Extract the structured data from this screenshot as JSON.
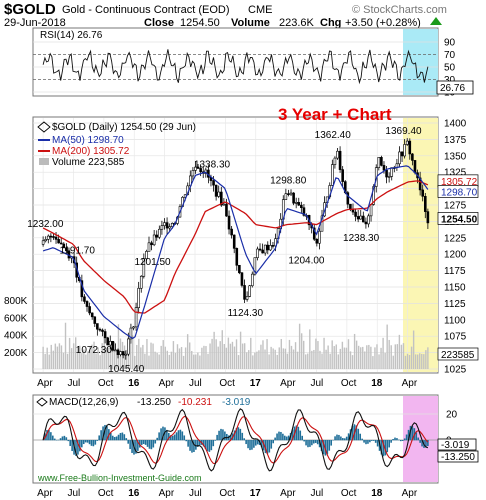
{
  "header": {
    "symbol": "$GOLD",
    "name": "Gold - Continuous Contract (EOD)",
    "exchange": "CME",
    "source": "© StockCharts.com",
    "date": "29-Jun-2018",
    "close_label": "Close",
    "close_value": "1254.50",
    "volume_label": "Volume",
    "volume_value": "223.6K",
    "chg_label": "Chg",
    "chg_value": "+3.50 (+0.28%)",
    "chg_icon": "up-triangle-icon"
  },
  "rsi": {
    "legend": "RSI(14) 26.76",
    "ticks": [
      "90",
      "70",
      "50",
      "30",
      "10"
    ],
    "value_label": "26.76"
  },
  "price": {
    "legend_main": "$GOLD (Daily) 1254.50 (29 Jun)",
    "legend_ma50": "MA(50) 1298.70",
    "legend_ma200": "MA(200) 1305.72",
    "legend_volume": "Volume 223,585",
    "headline": "3 Year + Chart",
    "ticks": [
      "1400",
      "1375",
      "1350",
      "1325",
      "1300",
      "1275",
      "1250",
      "1225",
      "1200",
      "1175",
      "1150",
      "1125",
      "1100",
      "1075",
      "1050",
      "1025"
    ],
    "ma200_label": "1305.72",
    "ma50_label": "1298.70",
    "last_label": "1254.50",
    "volume_value_label": "223585",
    "volume_ticks": [
      "800K",
      "600K",
      "400K",
      "200K"
    ],
    "annotations": [
      "1232.00",
      "1191.70",
      "1072.30",
      "1045.40",
      "1201.50",
      "1338.30",
      "1124.30",
      "1298.80",
      "1362.40",
      "1204.00",
      "1238.30",
      "1369.40"
    ]
  },
  "macd": {
    "legend_prefix": "MACD(12,26,9)",
    "macd_value": "-13.250",
    "signal_value": "-10.231",
    "hist_value": "-3.019",
    "ticks": [
      "20",
      "0"
    ],
    "label_hist": "-3.019",
    "label_macd": "-13.250"
  },
  "x_axis": {
    "labels_price": [
      "Apr",
      "Jul",
      "Oct",
      "16",
      "Apr",
      "Jul",
      "Oct",
      "17",
      "Apr",
      "Jul",
      "Oct",
      "18",
      "Apr"
    ],
    "labels_macd": [
      "Apr",
      "Jul",
      "Oct",
      "16",
      "Apr",
      "Jul",
      "Oct",
      "17",
      "Apr",
      "Jul",
      "Oct",
      "18",
      "Apr"
    ]
  },
  "footer": {
    "url": "www.Free-Bullion-Investment-Guide.com"
  },
  "colors": {
    "ma50": "#1a2ea8",
    "ma200": "#cc1111",
    "headline": "#e60000",
    "highlight_price": "#fbf6b4",
    "highlight_rsi": "#aaeaf6",
    "highlight_macd": "#f2b6f0",
    "macd_line": "#000000",
    "signal_line": "#cc1111",
    "histogram": "#1f6f99",
    "footer_text": "#1a7a1a"
  },
  "chart_data": [
    {
      "type": "line",
      "title": "RSI(14)",
      "ylim": [
        0,
        100
      ],
      "reference_lines": [
        70,
        30
      ],
      "last_value": 26.76
    },
    {
      "type": "line",
      "title": "$GOLD (Daily) 1254.50 (29 Jun)",
      "ylim": [
        1025,
        1400
      ],
      "x": [
        "2015-04",
        "2015-05",
        "2015-07",
        "2015-08",
        "2015-10",
        "2015-12",
        "2016-01",
        "2016-02",
        "2016-04",
        "2016-05",
        "2016-07",
        "2016-08",
        "2016-10",
        "2016-12",
        "2017-01",
        "2017-03",
        "2017-04",
        "2017-06",
        "2017-07",
        "2017-09",
        "2017-10",
        "2017-12",
        "2018-01",
        "2018-02",
        "2018-04",
        "2018-05",
        "2018-06"
      ],
      "series": [
        {
          "name": "$GOLD",
          "values": [
            1215,
            1232,
            1191.7,
            1125,
            1072.3,
            1045.4,
            1100,
            1201.5,
            1245,
            1250,
            1338.3,
            1325,
            1270,
            1124.3,
            1200,
            1220,
            1298.8,
            1255,
            1215,
            1362.4,
            1280,
            1238.3,
            1345,
            1320,
            1369.4,
            1310,
            1254.5
          ]
        },
        {
          "name": "MA(50)",
          "values": [
            1205,
            1210,
            1195,
            1145,
            1105,
            1080,
            1070,
            1120,
            1225,
            1245,
            1320,
            1325,
            1300,
            1200,
            1170,
            1210,
            1270,
            1260,
            1230,
            1320,
            1290,
            1265,
            1320,
            1330,
            1335,
            1320,
            1298.7
          ]
        },
        {
          "name": "MA(200)",
          "values": [
            1240,
            1232,
            1215,
            1190,
            1160,
            1135,
            1112,
            1110,
            1130,
            1170,
            1230,
            1265,
            1280,
            1262,
            1245,
            1240,
            1245,
            1248,
            1245,
            1262,
            1268,
            1270,
            1285,
            1295,
            1310,
            1312,
            1305.72
          ]
        }
      ],
      "annotations": [
        1232.0,
        1191.7,
        1072.3,
        1045.4,
        1201.5,
        1338.3,
        1124.3,
        1298.8,
        1362.4,
        1204.0,
        1238.3,
        1369.4
      ]
    },
    {
      "type": "bar",
      "title": "Volume 223,585",
      "ylim": [
        0,
        900000
      ],
      "last_value": 223585
    },
    {
      "type": "line",
      "title": "MACD(12,26,9)",
      "series": [
        {
          "name": "MACD",
          "last_value": -13.25
        },
        {
          "name": "Signal",
          "last_value": -10.231
        },
        {
          "name": "Histogram",
          "last_value": -3.019
        }
      ]
    }
  ]
}
